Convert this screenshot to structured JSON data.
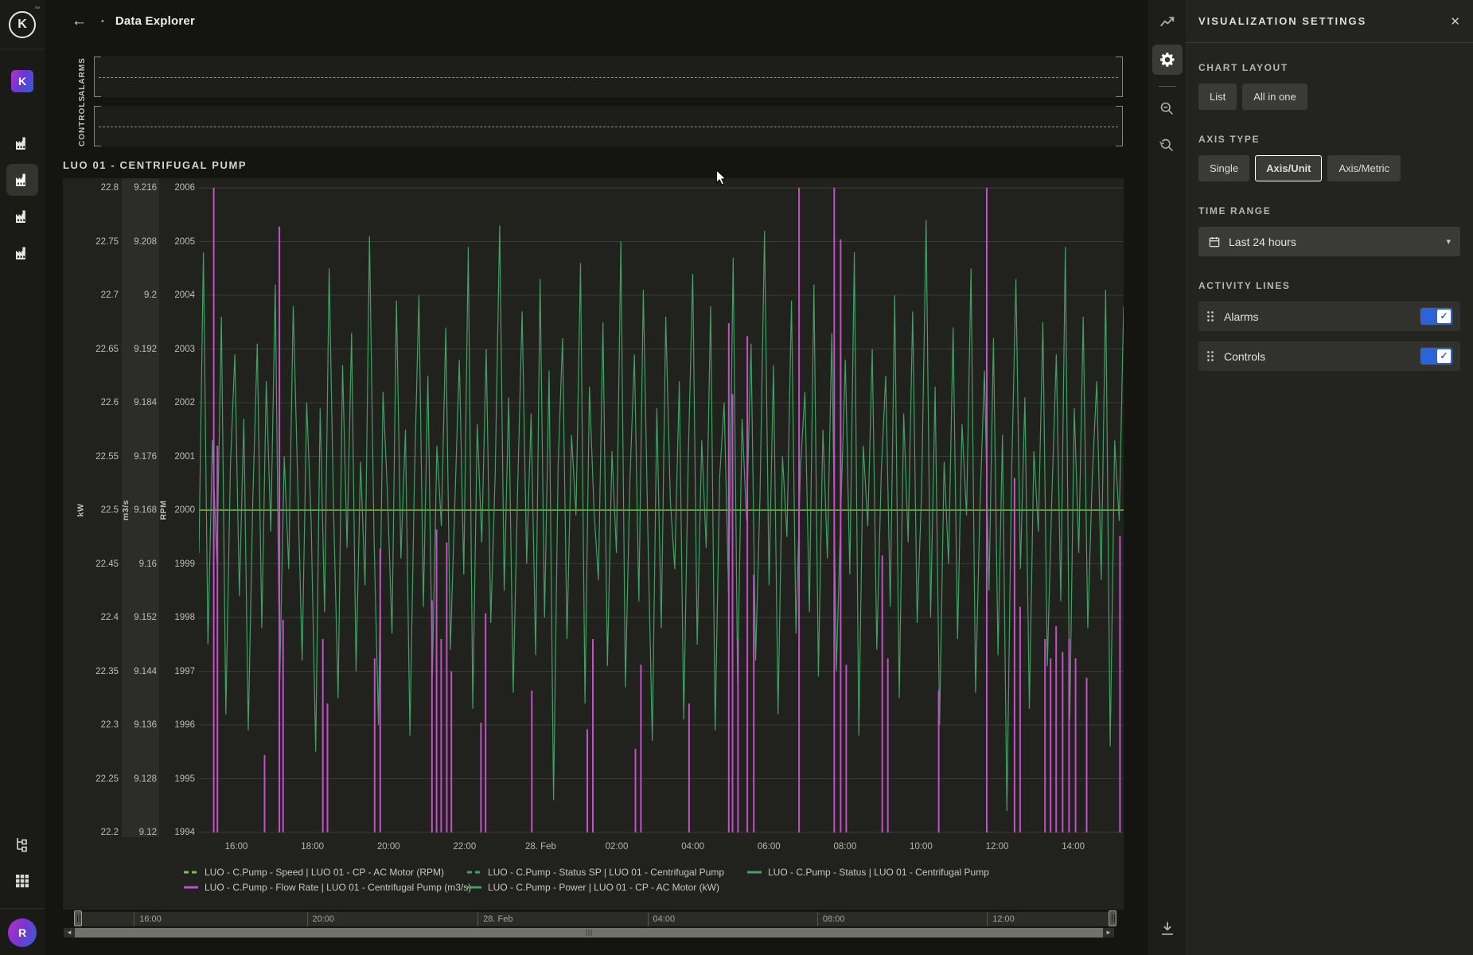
{
  "app": {
    "logo_letter": "K",
    "logo_tm": "™",
    "workspace_letter": "K",
    "avatar_letter": "R"
  },
  "icons": {
    "back": "←",
    "bullet": "•",
    "close": "✕",
    "caret_down": "▾",
    "check": "✓",
    "arrow_left_small": "◄",
    "arrow_right_small": "►"
  },
  "header": {
    "title": "Data Explorer"
  },
  "activity_tracks": {
    "alarms_label": "ALARMS",
    "controls_label": "CONTROLS"
  },
  "chart": {
    "title": "LUO 01 - CENTRIFUGAL PUMP",
    "axes": [
      {
        "unit": "kW",
        "ticks": [
          "22.8",
          "22.75",
          "22.7",
          "22.65",
          "22.6",
          "22.55",
          "22.5",
          "22.45",
          "22.4",
          "22.35",
          "22.3",
          "22.25",
          "22.2"
        ]
      },
      {
        "unit": "m3/s",
        "highlighted": true,
        "ticks": [
          "9.216",
          "9.208",
          "9.2",
          "9.192",
          "9.184",
          "9.176",
          "9.168",
          "9.16",
          "9.152",
          "9.144",
          "9.136",
          "9.128",
          "9.12"
        ]
      },
      {
        "unit": "RPM",
        "ticks": [
          "2006",
          "2005",
          "2004",
          "2003",
          "2002",
          "2001",
          "2000",
          "1999",
          "1998",
          "1997",
          "1996",
          "1995",
          "1994"
        ]
      }
    ],
    "x_ticks": [
      "16:00",
      "18:00",
      "20:00",
      "22:00",
      "28. Feb",
      "02:00",
      "04:00",
      "06:00",
      "08:00",
      "10:00",
      "12:00",
      "14:00"
    ],
    "legend": [
      {
        "label": "LUO - C.Pump - Speed | LUO 01 - CP - AC Motor (RPM)",
        "color": "#7cc243",
        "dashed": true,
        "col": 1,
        "row": 1
      },
      {
        "label": "LUO - C.Pump - Flow Rate | LUO 01 - Centrifugal Pump (m3/s)",
        "color": "#c44fc8",
        "dashed": false,
        "col": 1,
        "row": 2
      },
      {
        "label": "LUO - C.Pump - Status SP | LUO 01 - Centrifugal Pump",
        "color": "#43a065",
        "dashed": true,
        "col": 2,
        "row": 1
      },
      {
        "label": "LUO - C.Pump - Power | LUO 01 - CP - AC Motor (kW)",
        "color": "#43a065",
        "dashed": false,
        "col": 2,
        "row": 2
      },
      {
        "label": "LUO - C.Pump - Status | LUO 01 - Centrifugal Pump",
        "color": "#43a065",
        "dashed": false,
        "col": 3,
        "row": 1
      }
    ]
  },
  "chart_data": {
    "type": "line",
    "title": "LUO 01 - CENTRIFUGAL PUMP",
    "x_ticks": [
      "16:00",
      "18:00",
      "20:00",
      "22:00",
      "28. Feb",
      "02:00",
      "04:00",
      "06:00",
      "08:00",
      "10:00",
      "12:00",
      "14:00"
    ],
    "y_axes": [
      {
        "unit": "kW",
        "min": 22.2,
        "max": 22.8
      },
      {
        "unit": "m3/s",
        "min": 9.12,
        "max": 9.216
      },
      {
        "unit": "RPM",
        "min": 1994,
        "max": 2006
      }
    ],
    "grid": true,
    "legend_position": "bottom",
    "series": [
      {
        "name": "LUO - C.Pump - Speed | LUO 01 - CP - AC Motor (RPM)",
        "axis": "RPM",
        "color": "#7cc243",
        "render": "constant",
        "value": 2000
      },
      {
        "name": "LUO - C.Pump - Status SP | LUO 01 - Centrifugal Pump",
        "axis": "RPM",
        "color": "#43a065",
        "render": "jagged",
        "values": [
          1999.2,
          2004.8,
          1997.5,
          2001.3,
          1999.0,
          2003.6,
          1996.2,
          2000.8,
          2002.9,
          1998.4,
          2001.7,
          1995.9,
          2000.2,
          2003.1,
          1997.8,
          2002.4,
          1999.6,
          2004.2,
          1996.8,
          2001.0,
          1998.9,
          2003.8,
          2000.5,
          1997.2,
          2002.0,
          1999.8,
          1995.5,
          2001.9,
          1998.1,
          2004.5,
          2000.0,
          1996.5,
          2002.7,
          1999.3,
          2003.3,
          1997.0,
          2000.9,
          1998.6,
          2005.1,
          1999.5,
          1996.0,
          2002.2,
          2000.3,
          1997.7,
          2003.9,
          1999.1,
          2001.5,
          1995.8,
          2000.6,
          2004.0,
          1998.2,
          2002.5,
          1996.9,
          2001.2,
          1999.7,
          2003.4,
          1997.4,
          2000.1,
          2002.8,
          1998.8,
          2004.9,
          1996.3,
          2001.6,
          1999.4,
          2003.0,
          1997.9,
          2000.7,
          2005.3,
          1998.5,
          2002.1,
          1996.6,
          2000.4,
          2003.7,
          1999.0,
          2001.8,
          1997.3,
          2004.3,
          1998.0,
          2002.6,
          1994.6,
          2000.8,
          2003.2,
          1997.6,
          2001.4,
          1999.9,
          2004.6,
          1996.4,
          2002.3,
          2000.0,
          1998.7,
          2003.5,
          1997.1,
          2001.1,
          1999.2,
          2005.0,
          1996.7,
          2000.5,
          2002.9,
          1998.3,
          2004.1,
          1999.6,
          1995.7,
          2001.9,
          1997.8,
          2003.6,
          2000.2,
          1998.9,
          2002.4,
          1996.1,
          2000.9,
          2004.4,
          1997.5,
          2001.3,
          1999.3,
          2003.8,
          1995.9,
          2000.6,
          2002.0,
          1998.4,
          2004.7,
          1996.8,
          2001.7,
          1999.8,
          2003.1,
          1997.2,
          2000.3,
          2005.2,
          1998.6,
          2002.7,
          1996.2,
          2001.0,
          1999.5,
          2003.9,
          1997.7,
          2000.8,
          2002.2,
          1998.1,
          2004.2,
          1996.9,
          2001.5,
          1999.1,
          2003.3,
          1997.0,
          2000.0,
          2002.8,
          1998.8,
          2004.8,
          1995.8,
          2001.2,
          1999.7,
          2003.0,
          1997.4,
          2000.7,
          2002.5,
          1998.2,
          2004.0,
          1996.5,
          2001.8,
          1999.4,
          2003.7,
          1997.9,
          2000.4,
          2005.4,
          1998.0,
          2002.3,
          1996.0,
          2000.9,
          1999.0,
          2003.4,
          1997.6,
          2001.6,
          1999.9,
          2004.5,
          1996.6,
          2000.1,
          2002.6,
          1998.5,
          2003.2,
          1997.3,
          2001.4,
          1994.4,
          2000.5,
          2004.3,
          1998.9,
          2002.1,
          1996.3,
          2001.1,
          1999.6,
          2003.5,
          1997.1,
          2000.2,
          2002.9,
          1998.3,
          2004.9,
          1996.1,
          2001.9,
          1999.2,
          2003.6,
          1997.8,
          2000.6,
          2002.4,
          1998.7,
          2004.1,
          1995.6,
          2001.3,
          1999.8,
          2003.8
        ]
      },
      {
        "name": "LUO - C.Pump - Flow Rate | LUO 01 - Centrifugal Pump (m3/s)",
        "axis": "m3/s",
        "color": "#c44fc8",
        "render": "spikes",
        "spikes": [
          [
            0.016,
            1.0
          ],
          [
            0.02,
            0.6
          ],
          [
            0.071,
            0.12
          ],
          [
            0.087,
            0.94
          ],
          [
            0.091,
            0.33
          ],
          [
            0.134,
            0.3
          ],
          [
            0.139,
            0.2
          ],
          [
            0.19,
            0.27
          ],
          [
            0.196,
            0.44
          ],
          [
            0.252,
            0.36
          ],
          [
            0.257,
            0.47
          ],
          [
            0.262,
            0.3
          ],
          [
            0.268,
            0.45
          ],
          [
            0.273,
            0.25
          ],
          [
            0.305,
            0.17
          ],
          [
            0.31,
            0.34
          ],
          [
            0.36,
            0.22
          ],
          [
            0.42,
            0.16
          ],
          [
            0.426,
            0.3
          ],
          [
            0.472,
            0.13
          ],
          [
            0.478,
            0.26
          ],
          [
            0.53,
            0.2
          ],
          [
            0.573,
            0.79
          ],
          [
            0.577,
            0.68
          ],
          [
            0.583,
            0.3
          ],
          [
            0.593,
            0.77
          ],
          [
            0.6,
            0.4
          ],
          [
            0.649,
            1.0
          ],
          [
            0.687,
            1.0
          ],
          [
            0.694,
            0.92
          ],
          [
            0.7,
            0.26
          ],
          [
            0.739,
            0.43
          ],
          [
            0.745,
            0.27
          ],
          [
            0.8,
            0.22
          ],
          [
            0.852,
            1.0
          ],
          [
            0.882,
            0.55
          ],
          [
            0.888,
            0.35
          ],
          [
            0.915,
            0.3
          ],
          [
            0.921,
            0.27
          ],
          [
            0.927,
            0.32
          ],
          [
            0.934,
            0.28
          ],
          [
            0.941,
            0.3
          ],
          [
            0.948,
            0.27
          ],
          [
            0.96,
            0.24
          ],
          [
            0.996,
            0.46
          ]
        ]
      },
      {
        "name": "LUO - C.Pump - Power | LUO 01 - CP - AC Motor (kW)",
        "axis": "kW",
        "color": "#43a065",
        "render": "overlapping-with-status-sp"
      },
      {
        "name": "LUO - C.Pump - Status | LUO 01 - Centrifugal Pump",
        "axis": "RPM",
        "color": "#43a065",
        "render": "overlapping-with-status-sp"
      }
    ]
  },
  "navigator": {
    "labels": [
      "16:00",
      "20:00",
      "28. Feb",
      "04:00",
      "08:00",
      "12:00"
    ]
  },
  "settings": {
    "panel_title": "VISUALIZATION SETTINGS",
    "chart_layout": {
      "label": "CHART LAYOUT",
      "options": [
        "List",
        "All in one"
      ]
    },
    "axis_type": {
      "label": "AXIS TYPE",
      "options": [
        "Single",
        "Axis/Unit",
        "Axis/Metric"
      ],
      "selected": "Axis/Unit"
    },
    "time_range": {
      "label": "TIME RANGE",
      "value": "Last 24 hours"
    },
    "activity_lines": {
      "label": "ACTIVITY LINES",
      "items": [
        {
          "name": "Alarms",
          "enabled": true
        },
        {
          "name": "Controls",
          "enabled": true
        }
      ]
    }
  }
}
